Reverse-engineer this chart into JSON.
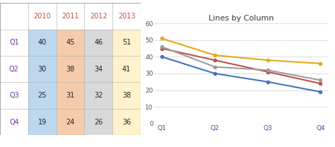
{
  "title": "Lines by Column",
  "quarters": [
    "Q1",
    "Q2",
    "Q3",
    "Q4"
  ],
  "series": {
    "2010": [
      40,
      30,
      25,
      19
    ],
    "2011": [
      45,
      38,
      31,
      24
    ],
    "2012": [
      46,
      34,
      32,
      26
    ],
    "2013": [
      51,
      41,
      38,
      36
    ]
  },
  "colors": {
    "2010": "#4472C4",
    "2011": "#C0504D",
    "2012": "#9E9E9E",
    "2013": "#E6A817"
  },
  "ylim": [
    0,
    60
  ],
  "yticks": [
    0,
    10,
    20,
    30,
    40,
    50,
    60
  ],
  "table": {
    "years": [
      "2010",
      "2011",
      "2012",
      "2013"
    ],
    "quarter_labels": [
      "Q1",
      "Q2",
      "Q3",
      "Q4"
    ],
    "rows": {
      "Q1": [
        40,
        45,
        46,
        51
      ],
      "Q2": [
        30,
        38,
        34,
        41
      ],
      "Q3": [
        25,
        31,
        32,
        38
      ],
      "Q4": [
        19,
        24,
        26,
        36
      ]
    },
    "col_colors": [
      "#BDD7EE",
      "#F4CCAC",
      "#D9D9D9",
      "#FFF2CC"
    ],
    "header_text_color": "#C0504D",
    "row_label_color": "#7030A0",
    "border_color": "#AAAAAA"
  }
}
